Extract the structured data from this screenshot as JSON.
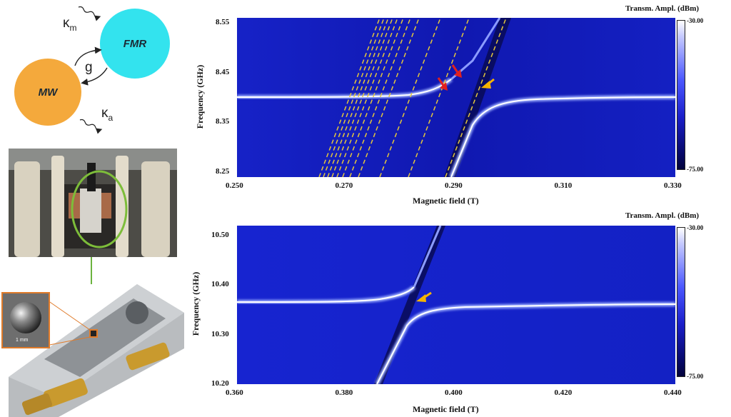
{
  "schematic": {
    "fmr_label": "FMR",
    "mw_label": "MW",
    "coupling_label": "g",
    "kappa_m_base": "κ",
    "kappa_m_sub": "m",
    "kappa_a_base": "κ",
    "kappa_a_sub": "a",
    "fmr_color": "#33e3ee",
    "mw_color": "#f4a93c"
  },
  "inset": {
    "scale_label": "1 mm"
  },
  "chart_data": [
    {
      "type": "heatmap",
      "title": "",
      "xlabel": "Magnetic field (T)",
      "ylabel": "Frequency (GHz)",
      "xlim": [
        0.25,
        0.33
      ],
      "ylim": [
        8.24,
        8.56
      ],
      "x_ticks": [
        "0.250",
        "0.270",
        "0.290",
        "0.310",
        "0.330"
      ],
      "y_ticks": [
        "8.55",
        "8.45",
        "8.35",
        "8.25"
      ],
      "colorbar_title": "Transm. Ampl. (dBm)",
      "colorbar_max": "-30.00",
      "colorbar_min": "-75.00",
      "cavity_frequency": 8.4,
      "main_crossing_field": 0.2935,
      "dashed_mode_lines": 14,
      "arrows": [
        {
          "color": "red",
          "x": 0.2875,
          "y": 8.43
        },
        {
          "color": "red",
          "x": 0.2915,
          "y": 8.445
        },
        {
          "color": "orange",
          "x": 0.2965,
          "y": 8.42
        }
      ]
    },
    {
      "type": "heatmap",
      "title": "",
      "xlabel": "Magnetic field (T)",
      "ylabel": "Frequency (GHz)",
      "xlim": [
        0.36,
        0.44
      ],
      "ylim": [
        10.2,
        10.52
      ],
      "x_ticks": [
        "0.360",
        "0.380",
        "0.400",
        "0.420",
        "0.440"
      ],
      "y_ticks": [
        "10.50",
        "10.40",
        "10.30",
        "10.20"
      ],
      "colorbar_title": "Transm. Ampl. (dBm)",
      "colorbar_max": "-30.00",
      "colorbar_min": "-75.00",
      "cavity_frequency": 10.36,
      "main_crossing_field": 0.391,
      "arrows": [
        {
          "color": "orange",
          "x": 0.3925,
          "y": 10.38
        }
      ]
    }
  ]
}
